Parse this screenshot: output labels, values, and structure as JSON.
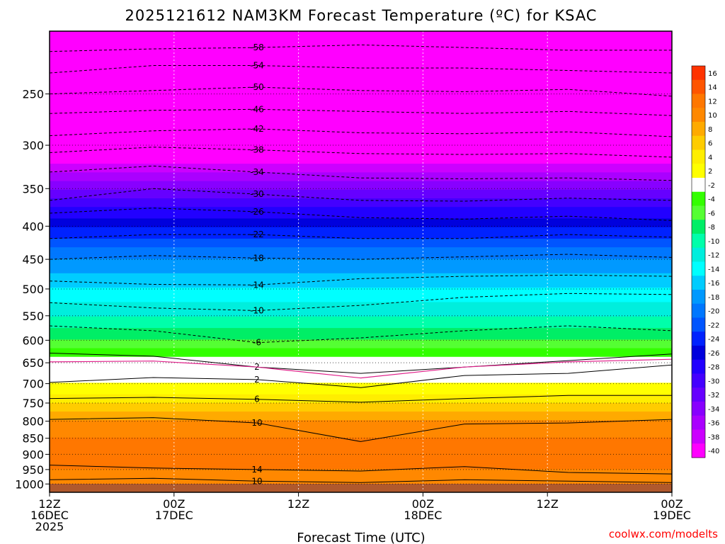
{
  "chart_data": {
    "type": "heatmap",
    "title": "2025121612 NAM3KM Forecast Temperature (ºC) for KSAC",
    "xlabel": "Forecast Time (UTC)",
    "ylabel": "",
    "credit": "coolwx.com/modelts",
    "ylim": [
      1030,
      200
    ],
    "xlim_hours": [
      0,
      60
    ],
    "y_ticks": [
      250,
      300,
      350,
      400,
      450,
      500,
      550,
      600,
      650,
      700,
      750,
      800,
      850,
      900,
      950,
      1000
    ],
    "x_ticks": [
      {
        "hour": 0,
        "line1": "12Z",
        "line2": "16DEC",
        "line3": "2025"
      },
      {
        "hour": 12,
        "line1": "00Z",
        "line2": "17DEC",
        "line3": ""
      },
      {
        "hour": 24,
        "line1": "12Z",
        "line2": "",
        "line3": ""
      },
      {
        "hour": 36,
        "line1": "00Z",
        "line2": "18DEC",
        "line3": ""
      },
      {
        "hour": 48,
        "line1": "12Z",
        "line2": "",
        "line3": ""
      },
      {
        "hour": 60,
        "line1": "00Z",
        "line2": "19DEC",
        "line3": ""
      }
    ],
    "colorbar": {
      "levels": [
        16,
        14,
        12,
        10,
        8,
        6,
        4,
        2,
        -2,
        -4,
        -6,
        -8,
        -10,
        -12,
        -14,
        -16,
        -18,
        -20,
        -22,
        -24,
        -26,
        -28,
        -30,
        -32,
        -34,
        -36,
        -38,
        -40
      ],
      "colors": [
        "#ff3300",
        "#ff5500",
        "#ff7700",
        "#ff8800",
        "#ffaa00",
        "#ffcc00",
        "#ffee00",
        "#ffff00",
        "#ffffff",
        "#33ff00",
        "#55ff33",
        "#00ee66",
        "#00ffaa",
        "#00eedd",
        "#00ffff",
        "#00ccff",
        "#0099ff",
        "#0077ff",
        "#0055ff",
        "#0022ff",
        "#0000dd",
        "#2200ff",
        "#4400ff",
        "#6600ff",
        "#8800ff",
        "#aa00ff",
        "#cc00ff",
        "#ff00ff"
      ]
    },
    "temperature_profile": [
      {
        "pressure": 200,
        "temp": -58
      },
      {
        "pressure": 250,
        "temp": -50
      },
      {
        "pressure": 300,
        "temp": -42
      },
      {
        "pressure": 350,
        "temp": -32
      },
      {
        "pressure": 400,
        "temp": -24
      },
      {
        "pressure": 450,
        "temp": -18
      },
      {
        "pressure": 500,
        "temp": -14
      },
      {
        "pressure": 550,
        "temp": -10
      },
      {
        "pressure": 600,
        "temp": -6
      },
      {
        "pressure": 650,
        "temp": 0
      },
      {
        "pressure": 700,
        "temp": 2
      },
      {
        "pressure": 750,
        "temp": 6
      },
      {
        "pressure": 800,
        "temp": 10
      },
      {
        "pressure": 850,
        "temp": 12
      },
      {
        "pressure": 900,
        "temp": 14
      },
      {
        "pressure": 950,
        "temp": 12
      },
      {
        "pressure": 1000,
        "temp": 10
      }
    ],
    "contours": [
      {
        "label": "-58",
        "p": [
          215,
          213,
          212,
          210,
          212,
          214,
          214
        ]
      },
      {
        "label": "-54",
        "p": [
          232,
          226,
          226,
          228,
          228,
          230,
          232
        ]
      },
      {
        "label": "-50",
        "p": [
          250,
          247,
          244,
          247,
          248,
          246,
          252
        ]
      },
      {
        "label": "-46",
        "p": [
          268,
          265,
          264,
          266,
          268,
          266,
          270
        ]
      },
      {
        "label": "-42",
        "p": [
          290,
          285,
          283,
          287,
          288,
          286,
          291
        ]
      },
      {
        "label": "-38",
        "p": [
          308,
          302,
          305,
          309,
          310,
          309,
          313
        ]
      },
      {
        "label": "-34",
        "p": [
          330,
          323,
          330,
          337,
          338,
          337,
          340
        ]
      },
      {
        "label": "-30",
        "p": [
          365,
          350,
          357,
          365,
          366,
          362,
          365
        ]
      },
      {
        "label": "-26",
        "p": [
          382,
          375,
          380,
          388,
          390,
          386,
          392
        ]
      },
      {
        "label": "-22",
        "p": [
          418,
          412,
          412,
          418,
          418,
          412,
          416
        ]
      },
      {
        "label": "-18",
        "p": [
          450,
          444,
          448,
          450,
          446,
          442,
          447
        ]
      },
      {
        "label": "-14",
        "p": [
          486,
          492,
          493,
          482,
          478,
          476,
          478
        ]
      },
      {
        "label": "-10",
        "p": [
          525,
          535,
          540,
          530,
          515,
          508,
          510
        ]
      },
      {
        "label": "-6",
        "p": [
          570,
          580,
          605,
          595,
          580,
          570,
          580
        ]
      },
      {
        "label": "2",
        "p": [
          628,
          635,
          660,
          675,
          660,
          645,
          630
        ]
      },
      {
        "label": "2",
        "p": [
          697,
          685,
          690,
          710,
          680,
          675,
          655
        ]
      },
      {
        "label": "6",
        "p": [
          738,
          735,
          740,
          748,
          738,
          730,
          730
        ]
      },
      {
        "label": "10",
        "p": [
          795,
          790,
          805,
          860,
          808,
          805,
          795
        ]
      },
      {
        "label": "14",
        "p": [
          935,
          945,
          950,
          955,
          940,
          960,
          965
        ]
      },
      {
        "label": "10",
        "p": [
          985,
          980,
          990,
          995,
          985,
          990,
          995
        ]
      }
    ],
    "freezing_line": [
      648,
      646,
      660,
      686,
      660,
      648,
      642
    ]
  }
}
